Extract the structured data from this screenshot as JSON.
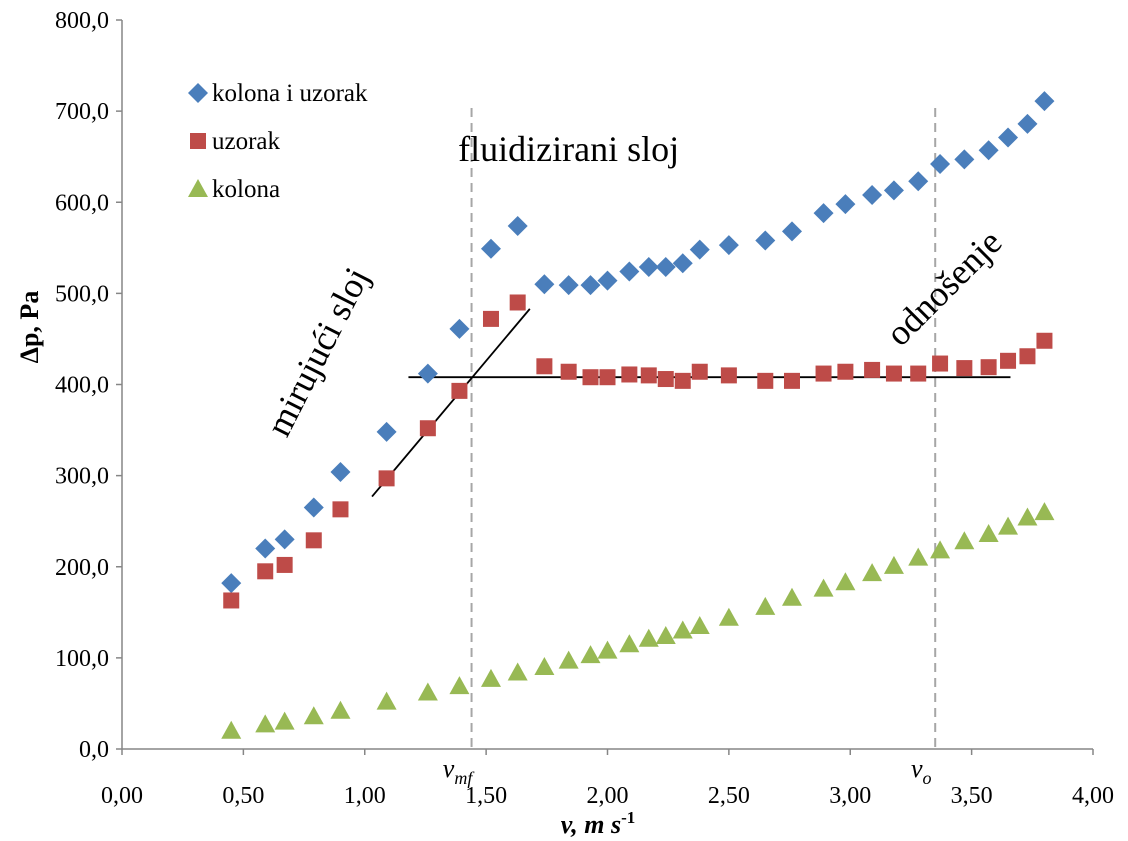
{
  "chart_data": {
    "type": "scatter",
    "xlabel": "v, m s",
    "xlabel_sup": "-1",
    "ylabel": "Δp, Pa",
    "xlim": [
      0,
      4
    ],
    "ylim": [
      0,
      800
    ],
    "x_ticks": [
      "0,00",
      "0,50",
      "1,00",
      "1,50",
      "2,00",
      "2,50",
      "3,00",
      "3,50",
      "4,00"
    ],
    "y_ticks": [
      "0,0",
      "100,0",
      "200,0",
      "300,0",
      "400,0",
      "500,0",
      "600,0",
      "700,0",
      "800,0"
    ],
    "grid": false,
    "legend_position": "top-left",
    "series": [
      {
        "name": "kolona i uzorak",
        "marker": "diamond",
        "color": "#4a7ebb",
        "x": [
          0.45,
          0.59,
          0.67,
          0.79,
          0.9,
          1.09,
          1.26,
          1.39,
          1.52,
          1.63,
          1.74,
          1.84,
          1.93,
          2.0,
          2.09,
          2.17,
          2.24,
          2.31,
          2.38,
          2.5,
          2.65,
          2.76,
          2.89,
          2.98,
          3.09,
          3.18,
          3.28,
          3.37,
          3.47,
          3.57,
          3.65,
          3.73,
          3.8
        ],
        "y": [
          182,
          220,
          230,
          265,
          304,
          348,
          412,
          461,
          549,
          574,
          510,
          509,
          509,
          514,
          524,
          529,
          529,
          533,
          548,
          553,
          558,
          568,
          588,
          598,
          608,
          613,
          623,
          642,
          647,
          657,
          671,
          686,
          711
        ]
      },
      {
        "name": "uzorak",
        "marker": "square",
        "color": "#be4b48",
        "x": [
          0.45,
          0.59,
          0.67,
          0.79,
          0.9,
          1.09,
          1.26,
          1.39,
          1.52,
          1.63,
          1.74,
          1.84,
          1.93,
          2.0,
          2.09,
          2.17,
          2.24,
          2.31,
          2.38,
          2.5,
          2.65,
          2.76,
          2.89,
          2.98,
          3.09,
          3.18,
          3.28,
          3.37,
          3.47,
          3.57,
          3.65,
          3.73,
          3.8
        ],
        "y": [
          163,
          195,
          202,
          229,
          263,
          297,
          352,
          393,
          472,
          490,
          420,
          414,
          408,
          408,
          411,
          410,
          406,
          404,
          414,
          410,
          404,
          404,
          412,
          414,
          416,
          412,
          412,
          423,
          418,
          419,
          426,
          431,
          448
        ]
      },
      {
        "name": "kolona",
        "marker": "triangle",
        "color": "#98b954",
        "x": [
          0.45,
          0.59,
          0.67,
          0.79,
          0.9,
          1.09,
          1.26,
          1.39,
          1.52,
          1.63,
          1.74,
          1.84,
          1.93,
          2.0,
          2.09,
          2.17,
          2.24,
          2.31,
          2.38,
          2.5,
          2.65,
          2.76,
          2.89,
          2.98,
          3.09,
          3.18,
          3.28,
          3.37,
          3.47,
          3.57,
          3.65,
          3.73,
          3.8
        ],
        "y": [
          20,
          27,
          30,
          36,
          42,
          52,
          62,
          69,
          77,
          84,
          90,
          97,
          103,
          108,
          115,
          121,
          124,
          130,
          135,
          144,
          156,
          166,
          176,
          183,
          193,
          201,
          210,
          218,
          228,
          236,
          244,
          254,
          260
        ]
      }
    ],
    "vertical_lines": [
      {
        "x": 1.44,
        "label_base": "v",
        "label_sub": "mf",
        "style": "dashed"
      },
      {
        "x": 3.35,
        "label_base": "v",
        "label_sub": "o",
        "style": "dashed"
      }
    ],
    "trend_lines": [
      {
        "x1": 1.03,
        "y1": 277,
        "x2": 1.68,
        "y2": 483
      },
      {
        "x1": 1.18,
        "y1": 408,
        "x2": 3.66,
        "y2": 408
      }
    ],
    "annotations": [
      {
        "text": "mirujući sloj",
        "x": 0.85,
        "y": 430,
        "rotation": -63
      },
      {
        "text": "fluidizirani sloj",
        "x": 1.84,
        "y": 645,
        "rotation": 0
      },
      {
        "text": "odnošenje",
        "x": 3.42,
        "y": 497,
        "rotation": -45
      }
    ]
  }
}
